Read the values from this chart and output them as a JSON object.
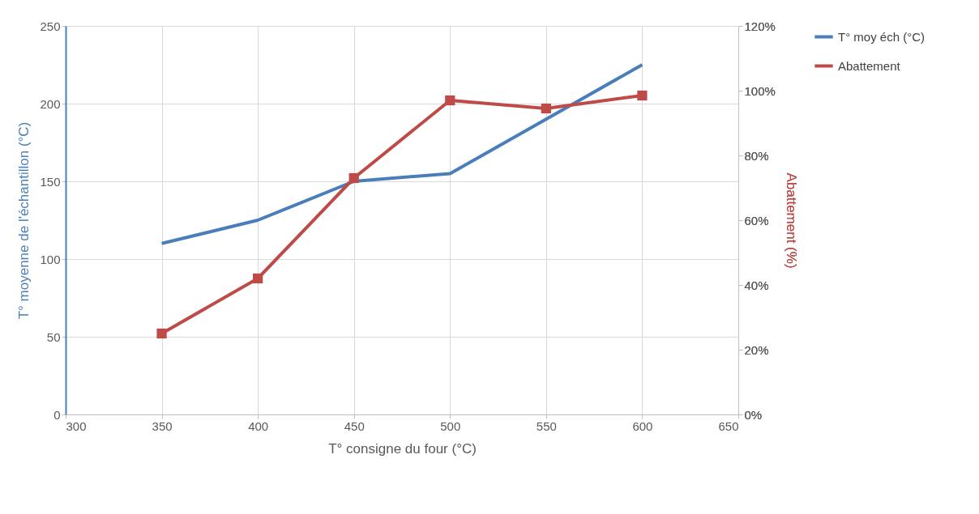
{
  "chart_data": {
    "type": "line",
    "xlabel": "T° consigne du four (°C)",
    "ylabel": "T° moyenne de l'échantillon (°C)",
    "y2label": "Abattement (%)",
    "x": [
      350,
      400,
      450,
      500,
      550,
      600
    ],
    "series": [
      {
        "name": "T° moy éch (°C)",
        "color": "#4a7ebb",
        "values": [
          110,
          125,
          150,
          155,
          190,
          225
        ],
        "marker": "none"
      },
      {
        "name": "Abattement",
        "color": "#be4b48",
        "values": [
          25,
          42,
          73,
          97,
          94.5,
          98.5
        ],
        "axis": "y2",
        "marker": "square"
      }
    ],
    "xlim": [
      300,
      650
    ],
    "xticks": [
      300,
      350,
      400,
      450,
      500,
      550,
      600,
      650
    ],
    "ylim": [
      0,
      250
    ],
    "yticks": [
      0,
      50,
      100,
      150,
      200,
      250
    ],
    "y2lim": [
      0,
      120
    ],
    "y2ticks": [
      {
        "value": 0,
        "label": "0%"
      },
      {
        "value": 20,
        "label": "20%"
      },
      {
        "value": 40,
        "label": "40%"
      },
      {
        "value": 60,
        "label": "60%"
      },
      {
        "value": 80,
        "label": "80%"
      },
      {
        "value": 100,
        "label": "100%"
      },
      {
        "value": 120,
        "label": "120%"
      }
    ],
    "grid": true,
    "legend": "right",
    "line_style": "solid"
  }
}
